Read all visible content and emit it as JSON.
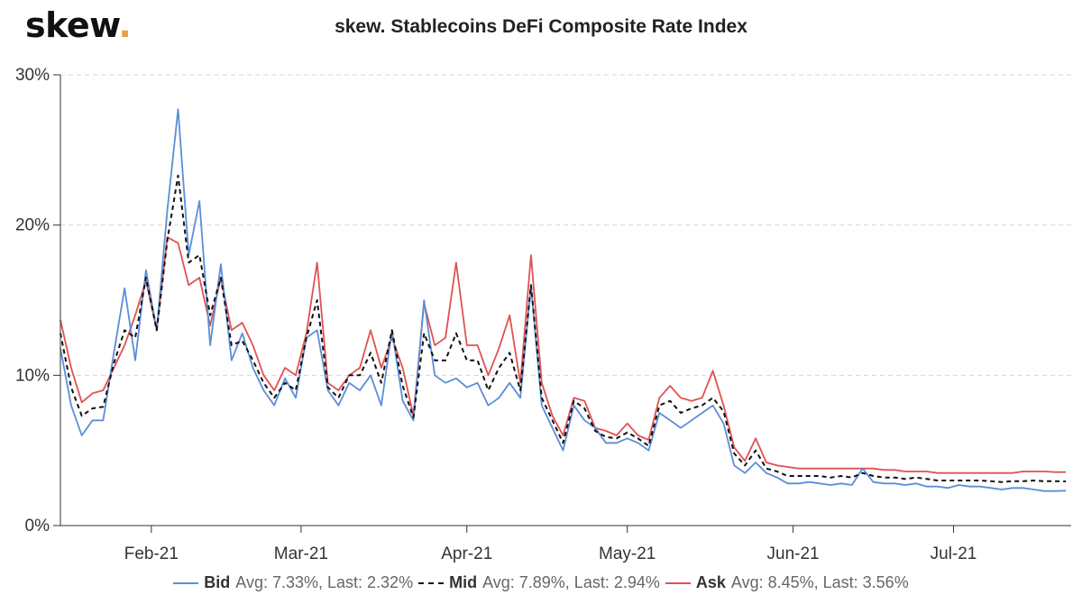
{
  "header": {
    "logo_text": "skew",
    "logo_dot": "."
  },
  "chart_data": {
    "type": "line",
    "title": "skew. Stablecoins DeFi Composite Rate Index",
    "xlabel": "",
    "ylabel": "",
    "ylim": [
      0,
      30
    ],
    "yticks": [
      {
        "value": 0,
        "label": "0%"
      },
      {
        "value": 10,
        "label": "10%"
      },
      {
        "value": 20,
        "label": "20%"
      },
      {
        "value": 30,
        "label": "30%"
      }
    ],
    "x_start_day": 0,
    "x_end_day": 189,
    "xticks": [
      {
        "day": 17,
        "label": "Feb-21"
      },
      {
        "day": 45,
        "label": "Mar-21"
      },
      {
        "day": 76,
        "label": "Apr-21"
      },
      {
        "day": 106,
        "label": "May-21"
      },
      {
        "day": 137,
        "label": "Jun-21"
      },
      {
        "day": 167,
        "label": "Jul-21"
      }
    ],
    "grid": true,
    "x_days": [
      0,
      2,
      4,
      6,
      8,
      10,
      12,
      14,
      16,
      18,
      20,
      22,
      24,
      26,
      28,
      30,
      32,
      34,
      36,
      38,
      40,
      42,
      44,
      46,
      48,
      50,
      52,
      54,
      56,
      58,
      60,
      62,
      64,
      66,
      68,
      70,
      72,
      74,
      76,
      78,
      80,
      82,
      84,
      86,
      88,
      90,
      92,
      94,
      96,
      98,
      100,
      102,
      104,
      106,
      108,
      110,
      112,
      114,
      116,
      118,
      120,
      122,
      124,
      126,
      128,
      130,
      132,
      134,
      136,
      138,
      140,
      142,
      144,
      146,
      148,
      150,
      152,
      154,
      156,
      158,
      160,
      162,
      164,
      166,
      168,
      170,
      172,
      174,
      176,
      178,
      180,
      182,
      184,
      186,
      188
    ],
    "series": [
      {
        "name": "Bid",
        "color": "#5b8ed8",
        "dash": false,
        "avg_text": "Avg: 7.33%, Last: 2.32%",
        "values": [
          11.8,
          8.0,
          6.0,
          7.0,
          7.0,
          11.5,
          15.8,
          11.0,
          17.0,
          13.0,
          21.0,
          27.7,
          18.0,
          21.6,
          12.0,
          17.4,
          11.0,
          12.8,
          10.5,
          9.0,
          8.0,
          9.8,
          8.5,
          12.5,
          13.0,
          9.0,
          8.0,
          9.5,
          9.0,
          10.0,
          8.0,
          13.0,
          8.3,
          7.0,
          15.0,
          10.0,
          9.5,
          9.8,
          9.2,
          9.5,
          8.0,
          8.5,
          9.5,
          8.5,
          16.0,
          8.0,
          6.5,
          5.0,
          8.0,
          7.0,
          6.5,
          5.5,
          5.5,
          5.8,
          5.5,
          5.0,
          7.5,
          7.0,
          6.5,
          7.0,
          7.5,
          8.0,
          6.8,
          4.0,
          3.5,
          4.2,
          3.5,
          3.2,
          2.8,
          2.8,
          2.9,
          2.8,
          2.7,
          2.8,
          2.7,
          3.8,
          2.9,
          2.8,
          2.8,
          2.7,
          2.8,
          2.6,
          2.6,
          2.5,
          2.7,
          2.6,
          2.6,
          2.5,
          2.4,
          2.5,
          2.5,
          2.4,
          2.3,
          2.3,
          2.32
        ]
      },
      {
        "name": "Mid",
        "color": "#111111",
        "dash": true,
        "avg_text": "Avg: 7.89%, Last: 2.94%",
        "values": [
          12.8,
          9.2,
          7.3,
          7.8,
          7.9,
          10.8,
          13.0,
          12.5,
          16.5,
          13.0,
          19.0,
          23.3,
          17.5,
          18.0,
          14.0,
          16.5,
          12.0,
          12.3,
          11.0,
          9.5,
          8.5,
          9.5,
          9.0,
          12.5,
          15.0,
          9.2,
          8.5,
          10.0,
          10.0,
          11.5,
          9.5,
          13.0,
          9.3,
          7.2,
          12.8,
          11.0,
          11.0,
          12.8,
          11.0,
          11.0,
          9.0,
          10.5,
          11.5,
          9.0,
          16.0,
          8.5,
          7.0,
          5.5,
          8.3,
          7.8,
          6.3,
          5.9,
          5.8,
          6.2,
          5.8,
          5.3,
          8.0,
          8.3,
          7.5,
          7.8,
          8.0,
          8.5,
          7.6,
          4.8,
          4.0,
          5.0,
          3.8,
          3.6,
          3.3,
          3.3,
          3.3,
          3.3,
          3.2,
          3.3,
          3.2,
          3.5,
          3.3,
          3.2,
          3.2,
          3.1,
          3.2,
          3.1,
          3.0,
          3.0,
          3.0,
          3.0,
          3.0,
          2.95,
          2.9,
          2.95,
          2.95,
          3.0,
          2.95,
          2.95,
          2.94
        ]
      },
      {
        "name": "Ask",
        "color": "#e05252",
        "dash": false,
        "avg_text": "Avg: 8.45%, Last: 3.56%",
        "values": [
          13.7,
          10.5,
          8.2,
          8.8,
          9.0,
          10.5,
          12.0,
          14.0,
          16.3,
          13.0,
          19.2,
          18.8,
          16.0,
          16.5,
          13.3,
          16.5,
          13.0,
          13.5,
          12.0,
          10.0,
          9.0,
          10.5,
          10.0,
          12.8,
          17.5,
          9.5,
          9.0,
          10.0,
          10.5,
          13.0,
          10.5,
          12.5,
          10.5,
          7.3,
          14.8,
          12.0,
          12.5,
          17.5,
          12.0,
          12.0,
          10.0,
          11.8,
          14.0,
          9.5,
          18.0,
          9.5,
          7.3,
          6.0,
          8.5,
          8.3,
          6.5,
          6.3,
          6.0,
          6.8,
          6.0,
          5.7,
          8.5,
          9.3,
          8.5,
          8.3,
          8.5,
          10.3,
          8.0,
          5.2,
          4.3,
          5.8,
          4.2,
          4.0,
          3.9,
          3.8,
          3.8,
          3.8,
          3.8,
          3.8,
          3.8,
          3.8,
          3.8,
          3.7,
          3.7,
          3.6,
          3.6,
          3.6,
          3.5,
          3.5,
          3.5,
          3.5,
          3.5,
          3.5,
          3.5,
          3.5,
          3.6,
          3.6,
          3.6,
          3.56,
          3.56
        ]
      }
    ]
  }
}
